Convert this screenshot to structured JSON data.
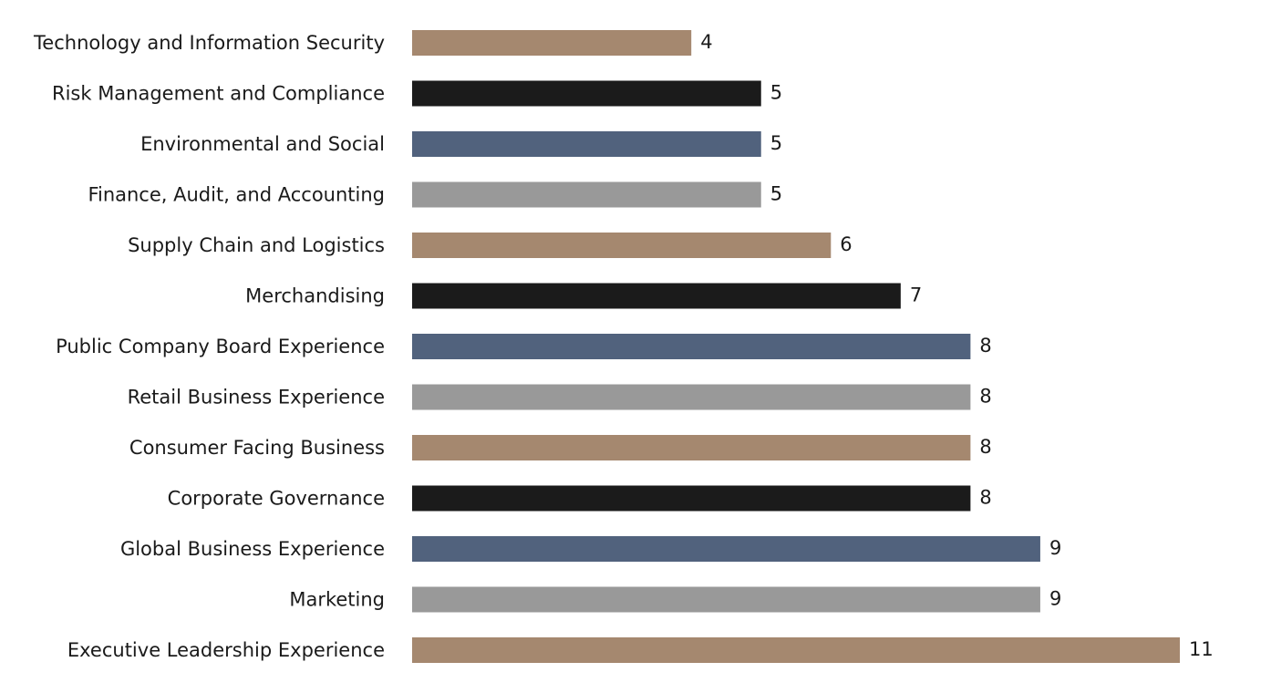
{
  "chart_data": {
    "type": "bar",
    "orientation": "horizontal",
    "title": "",
    "xlabel": "",
    "ylabel": "",
    "grid": false,
    "xlim": [
      0,
      11
    ],
    "categories": [
      "Technology and Information Security",
      "Risk Management and Compliance",
      "Environmental and Social",
      "Finance, Audit, and Accounting",
      "Supply Chain and Logistics",
      "Merchandising",
      "Public Company Board Experience",
      "Retail Business Experience",
      "Consumer Facing Business",
      "Corporate Governance",
      "Global Business Experience",
      "Marketing",
      "Executive Leadership Experience"
    ],
    "values": [
      4,
      5,
      5,
      5,
      6,
      7,
      8,
      8,
      8,
      8,
      9,
      9,
      11
    ],
    "value_labels": [
      "4",
      "5",
      "5",
      "5",
      "6",
      "7",
      "8",
      "8",
      "8",
      "8",
      "9",
      "9",
      "11"
    ],
    "colors": [
      "#a5886f",
      "#1b1b1b",
      "#51627d",
      "#999999",
      "#a5886f",
      "#1b1b1b",
      "#51627d",
      "#999999",
      "#a5886f",
      "#1b1b1b",
      "#51627d",
      "#999999",
      "#a5886f"
    ]
  }
}
